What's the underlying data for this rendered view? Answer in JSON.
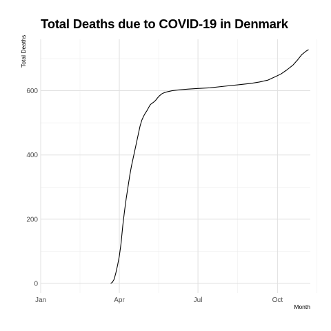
{
  "chart_data": {
    "type": "line",
    "title": "Total Deaths due to COVID-19 in Denmark",
    "xlabel": "Month",
    "ylabel": "Total Deaths",
    "x_ticks": [
      "Jan",
      "Apr",
      "Jul",
      "Oct"
    ],
    "y_ticks": [
      0,
      200,
      400,
      600
    ],
    "xlim": [
      "2020-01-01",
      "2020-11-08"
    ],
    "ylim": [
      -30,
      760
    ],
    "grid": true,
    "line_color": "#000000",
    "series": [
      {
        "points": [
          [
            "2020-03-22",
            0
          ],
          [
            "2020-03-24",
            4
          ],
          [
            "2020-03-26",
            13
          ],
          [
            "2020-03-28",
            33
          ],
          [
            "2020-03-30",
            57
          ],
          [
            "2020-04-01",
            85
          ],
          [
            "2020-04-03",
            125
          ],
          [
            "2020-04-05",
            180
          ],
          [
            "2020-04-07",
            225
          ],
          [
            "2020-04-09",
            265
          ],
          [
            "2020-04-11",
            300
          ],
          [
            "2020-04-13",
            335
          ],
          [
            "2020-04-15",
            365
          ],
          [
            "2020-04-17",
            390
          ],
          [
            "2020-04-19",
            415
          ],
          [
            "2020-04-21",
            440
          ],
          [
            "2020-04-23",
            465
          ],
          [
            "2020-04-25",
            490
          ],
          [
            "2020-04-27",
            508
          ],
          [
            "2020-04-29",
            520
          ],
          [
            "2020-05-01",
            530
          ],
          [
            "2020-05-03",
            538
          ],
          [
            "2020-05-05",
            548
          ],
          [
            "2020-05-07",
            557
          ],
          [
            "2020-05-09",
            561
          ],
          [
            "2020-05-11",
            565
          ],
          [
            "2020-05-13",
            570
          ],
          [
            "2020-05-15",
            577
          ],
          [
            "2020-05-17",
            583
          ],
          [
            "2020-05-20",
            590
          ],
          [
            "2020-05-23",
            594
          ],
          [
            "2020-05-27",
            597
          ],
          [
            "2020-06-01",
            600
          ],
          [
            "2020-06-10",
            603
          ],
          [
            "2020-06-20",
            605
          ],
          [
            "2020-07-01",
            607
          ],
          [
            "2020-07-15",
            609
          ],
          [
            "2020-08-01",
            614
          ],
          [
            "2020-08-15",
            618
          ],
          [
            "2020-09-01",
            623
          ],
          [
            "2020-09-10",
            627
          ],
          [
            "2020-09-20",
            633
          ],
          [
            "2020-09-28",
            643
          ],
          [
            "2020-10-05",
            652
          ],
          [
            "2020-10-12",
            665
          ],
          [
            "2020-10-19",
            680
          ],
          [
            "2020-10-24",
            695
          ],
          [
            "2020-10-29",
            712
          ],
          [
            "2020-11-03",
            723
          ],
          [
            "2020-11-06",
            728
          ]
        ]
      }
    ]
  }
}
